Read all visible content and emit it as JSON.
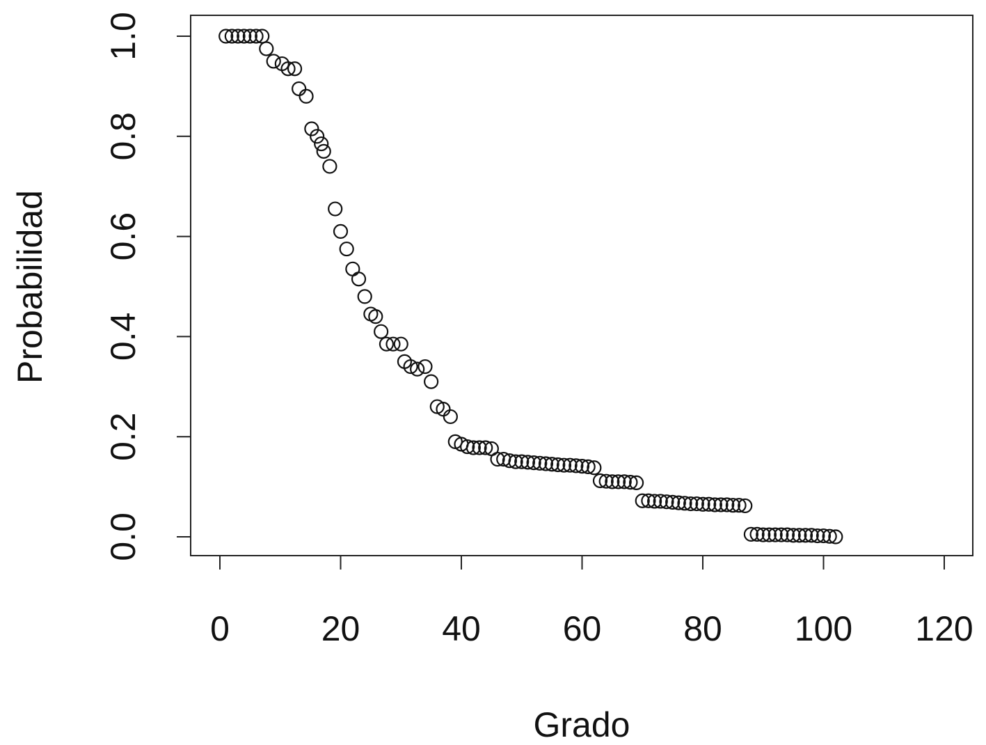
{
  "chart_data": {
    "type": "scatter",
    "title": "",
    "xlabel": "Grado",
    "ylabel": "Probabilidad",
    "xlim": [
      -2,
      122
    ],
    "ylim": [
      -0.04,
      1.04
    ],
    "xticks": [
      0,
      20,
      40,
      60,
      80,
      100,
      120
    ],
    "xtick_labels": [
      "0",
      "20",
      "40",
      "60",
      "80",
      "100",
      "120"
    ],
    "yticks": [
      0.0,
      0.2,
      0.4,
      0.6,
      0.8,
      1.0
    ],
    "ytick_labels": [
      "0.0",
      "0.2",
      "0.4",
      "0.6",
      "0.8",
      "1.0"
    ],
    "grid": false,
    "marker": "open-circle",
    "color": "#111111",
    "points": [
      [
        1,
        1.0
      ],
      [
        2,
        1.0
      ],
      [
        3,
        1.0
      ],
      [
        4,
        1.0
      ],
      [
        5,
        1.0
      ],
      [
        6,
        1.0
      ],
      [
        7,
        1.0
      ],
      [
        7.7,
        0.975
      ],
      [
        8.9,
        0.95
      ],
      [
        10.3,
        0.945
      ],
      [
        11.3,
        0.935
      ],
      [
        12.4,
        0.935
      ],
      [
        13.1,
        0.895
      ],
      [
        14.3,
        0.88
      ],
      [
        15.2,
        0.815
      ],
      [
        16.1,
        0.8
      ],
      [
        16.8,
        0.785
      ],
      [
        17.2,
        0.77
      ],
      [
        18.2,
        0.74
      ],
      [
        19.1,
        0.655
      ],
      [
        20,
        0.61
      ],
      [
        21,
        0.575
      ],
      [
        22,
        0.535
      ],
      [
        23,
        0.515
      ],
      [
        24,
        0.48
      ],
      [
        25,
        0.445
      ],
      [
        25.8,
        0.44
      ],
      [
        26.7,
        0.41
      ],
      [
        27.6,
        0.385
      ],
      [
        28.7,
        0.385
      ],
      [
        30,
        0.385
      ],
      [
        30.6,
        0.35
      ],
      [
        31.6,
        0.34
      ],
      [
        32.7,
        0.335
      ],
      [
        34,
        0.34
      ],
      [
        35,
        0.31
      ],
      [
        36,
        0.26
      ],
      [
        37,
        0.255
      ],
      [
        38.2,
        0.24
      ],
      [
        39,
        0.19
      ],
      [
        40,
        0.185
      ],
      [
        41,
        0.18
      ],
      [
        42,
        0.178
      ],
      [
        43,
        0.178
      ],
      [
        44,
        0.178
      ],
      [
        45,
        0.176
      ],
      [
        46,
        0.155
      ],
      [
        47,
        0.155
      ],
      [
        48,
        0.152
      ],
      [
        49,
        0.15
      ],
      [
        50,
        0.15
      ],
      [
        51,
        0.149
      ],
      [
        52,
        0.148
      ],
      [
        53,
        0.147
      ],
      [
        54,
        0.146
      ],
      [
        55,
        0.145
      ],
      [
        56,
        0.144
      ],
      [
        57,
        0.143
      ],
      [
        58,
        0.143
      ],
      [
        59,
        0.142
      ],
      [
        60,
        0.141
      ],
      [
        61,
        0.14
      ],
      [
        62,
        0.138
      ],
      [
        63,
        0.112
      ],
      [
        64,
        0.111
      ],
      [
        65,
        0.11
      ],
      [
        66,
        0.11
      ],
      [
        67,
        0.11
      ],
      [
        68,
        0.109
      ],
      [
        69,
        0.108
      ],
      [
        70,
        0.072
      ],
      [
        71,
        0.072
      ],
      [
        72,
        0.071
      ],
      [
        73,
        0.071
      ],
      [
        74,
        0.07
      ],
      [
        75,
        0.069
      ],
      [
        76,
        0.068
      ],
      [
        77,
        0.067
      ],
      [
        78,
        0.066
      ],
      [
        79,
        0.066
      ],
      [
        80,
        0.065
      ],
      [
        81,
        0.065
      ],
      [
        82,
        0.064
      ],
      [
        83,
        0.064
      ],
      [
        84,
        0.064
      ],
      [
        85,
        0.063
      ],
      [
        86,
        0.063
      ],
      [
        87,
        0.062
      ],
      [
        88,
        0.005
      ],
      [
        89,
        0.005
      ],
      [
        90,
        0.004
      ],
      [
        91,
        0.004
      ],
      [
        92,
        0.004
      ],
      [
        93,
        0.004
      ],
      [
        94,
        0.004
      ],
      [
        95,
        0.003
      ],
      [
        96,
        0.003
      ],
      [
        97,
        0.003
      ],
      [
        98,
        0.003
      ],
      [
        99,
        0.002
      ],
      [
        100,
        0.002
      ],
      [
        101,
        0.001
      ],
      [
        102,
        0.0
      ]
    ]
  }
}
